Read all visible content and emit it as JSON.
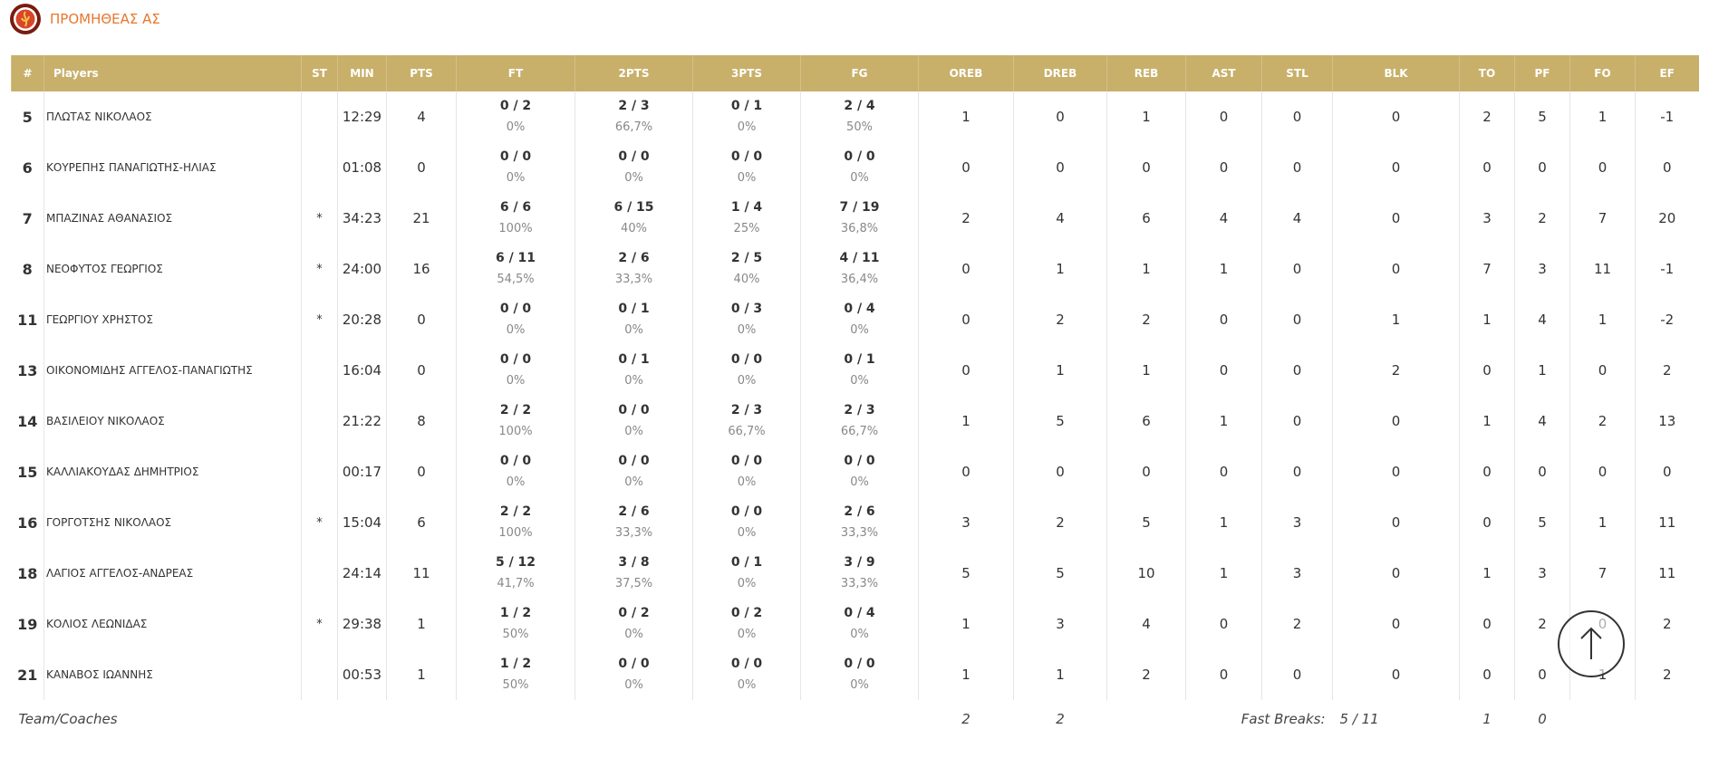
{
  "header": {
    "team_name": "ΠΡΟΜΗΘΕΑΣ ΑΣ"
  },
  "table": {
    "columns": [
      "#",
      "Players",
      "ST",
      "MIN",
      "PTS",
      "FT",
      "2PTS",
      "3PTS",
      "FG",
      "OREB",
      "DREB",
      "REB",
      "AST",
      "STL",
      "BLK",
      "TO",
      "PF",
      "FO",
      "EF"
    ],
    "rows": [
      [
        5,
        "ΠΛΩΤΑΣ ΝΙΚΟΛΑΟΣ",
        null,
        "12:29",
        4,
        [
          "0 / 2",
          "0%"
        ],
        [
          "2 / 3",
          "66,7%"
        ],
        [
          "0 / 1",
          "0%"
        ],
        [
          "2 / 4",
          "50%"
        ],
        1,
        0,
        1,
        0,
        0,
        0,
        2,
        5,
        1,
        -1
      ],
      [
        6,
        "ΚΟΥΡΕΠΗΣ ΠΑΝΑΓΙΩΤΗΣ-ΗΛΙΑΣ",
        null,
        "01:08",
        0,
        [
          "0 / 0",
          "0%"
        ],
        [
          "0 / 0",
          "0%"
        ],
        [
          "0 / 0",
          "0%"
        ],
        [
          "0 / 0",
          "0%"
        ],
        0,
        0,
        0,
        0,
        0,
        0,
        0,
        0,
        0,
        0
      ],
      [
        7,
        "ΜΠΑΖΙΝΑΣ ΑΘΑΝΑΣΙΟΣ",
        "*",
        "34:23",
        21,
        [
          "6 / 6",
          "100%"
        ],
        [
          "6 / 15",
          "40%"
        ],
        [
          "1 / 4",
          "25%"
        ],
        [
          "7 / 19",
          "36,8%"
        ],
        2,
        4,
        6,
        4,
        4,
        0,
        3,
        2,
        7,
        20
      ],
      [
        8,
        "ΝΕΟΦΥΤΟΣ ΓΕΩΡΓΙΟΣ",
        "*",
        "24:00",
        16,
        [
          "6 / 11",
          "54,5%"
        ],
        [
          "2 / 6",
          "33,3%"
        ],
        [
          "2 / 5",
          "40%"
        ],
        [
          "4 / 11",
          "36,4%"
        ],
        0,
        1,
        1,
        1,
        0,
        0,
        7,
        3,
        11,
        -1
      ],
      [
        11,
        "ΓΕΩΡΓΙΟΥ ΧΡΗΣΤΟΣ",
        "*",
        "20:28",
        0,
        [
          "0 / 0",
          "0%"
        ],
        [
          "0 / 1",
          "0%"
        ],
        [
          "0 / 3",
          "0%"
        ],
        [
          "0 / 4",
          "0%"
        ],
        0,
        2,
        2,
        0,
        0,
        1,
        1,
        4,
        1,
        -2
      ],
      [
        13,
        "ΟΙΚΟΝΟΜΙΔΗΣ ΑΓΓΕΛΟΣ-ΠΑΝΑΓΙΩΤΗΣ",
        null,
        "16:04",
        0,
        [
          "0 / 0",
          "0%"
        ],
        [
          "0 / 1",
          "0%"
        ],
        [
          "0 / 0",
          "0%"
        ],
        [
          "0 / 1",
          "0%"
        ],
        0,
        1,
        1,
        0,
        0,
        2,
        0,
        1,
        0,
        2
      ],
      [
        14,
        "ΒΑΣΙΛΕΙΟΥ ΝΙΚΟΛΑΟΣ",
        null,
        "21:22",
        8,
        [
          "2 / 2",
          "100%"
        ],
        [
          "0 / 0",
          "0%"
        ],
        [
          "2 / 3",
          "66,7%"
        ],
        [
          "2 / 3",
          "66,7%"
        ],
        1,
        5,
        6,
        1,
        0,
        0,
        1,
        4,
        2,
        13
      ],
      [
        15,
        "ΚΑΛΛΙΑΚΟΥΔΑΣ ΔΗΜΗΤΡΙΟΣ",
        null,
        "00:17",
        0,
        [
          "0 / 0",
          "0%"
        ],
        [
          "0 / 0",
          "0%"
        ],
        [
          "0 / 0",
          "0%"
        ],
        [
          "0 / 0",
          "0%"
        ],
        0,
        0,
        0,
        0,
        0,
        0,
        0,
        0,
        0,
        0
      ],
      [
        16,
        "ΓΟΡΓΟΤΣΗΣ ΝΙΚΟΛΑΟΣ",
        "*",
        "15:04",
        6,
        [
          "2 / 2",
          "100%"
        ],
        [
          "2 / 6",
          "33,3%"
        ],
        [
          "0 / 0",
          "0%"
        ],
        [
          "2 / 6",
          "33,3%"
        ],
        3,
        2,
        5,
        1,
        3,
        0,
        0,
        5,
        1,
        11
      ],
      [
        18,
        "ΛΑΓΙΟΣ ΑΓΓΕΛΟΣ-ΑΝΔΡΕΑΣ",
        null,
        "24:14",
        11,
        [
          "5 / 12",
          "41,7%"
        ],
        [
          "3 / 8",
          "37,5%"
        ],
        [
          "0 / 1",
          "0%"
        ],
        [
          "3 / 9",
          "33,3%"
        ],
        5,
        5,
        10,
        1,
        3,
        0,
        1,
        3,
        7,
        11
      ],
      [
        19,
        "ΚΟΛΙΟΣ ΛΕΩΝΙΔΑΣ",
        "*",
        "29:38",
        1,
        [
          "1 / 2",
          "50%"
        ],
        [
          "0 / 2",
          "0%"
        ],
        [
          "0 / 2",
          "0%"
        ],
        [
          "0 / 4",
          "0%"
        ],
        1,
        3,
        4,
        0,
        2,
        0,
        0,
        2,
        0,
        2
      ],
      [
        21,
        "ΚΑΝΑΒΟΣ ΙΩΑΝΝΗΣ",
        null,
        "00:53",
        1,
        [
          "1 / 2",
          "50%"
        ],
        [
          "0 / 0",
          "0%"
        ],
        [
          "0 / 0",
          "0%"
        ],
        [
          "0 / 0",
          "0%"
        ],
        1,
        1,
        2,
        0,
        0,
        0,
        0,
        0,
        1,
        2
      ]
    ],
    "team": {
      "label": "Team/Coaches",
      "oreb": 2,
      "dreb": 2,
      "fast_breaks_label": "Fast Breaks:",
      "fast_breaks": "5 / 11",
      "to": 1,
      "pf": 0
    }
  }
}
